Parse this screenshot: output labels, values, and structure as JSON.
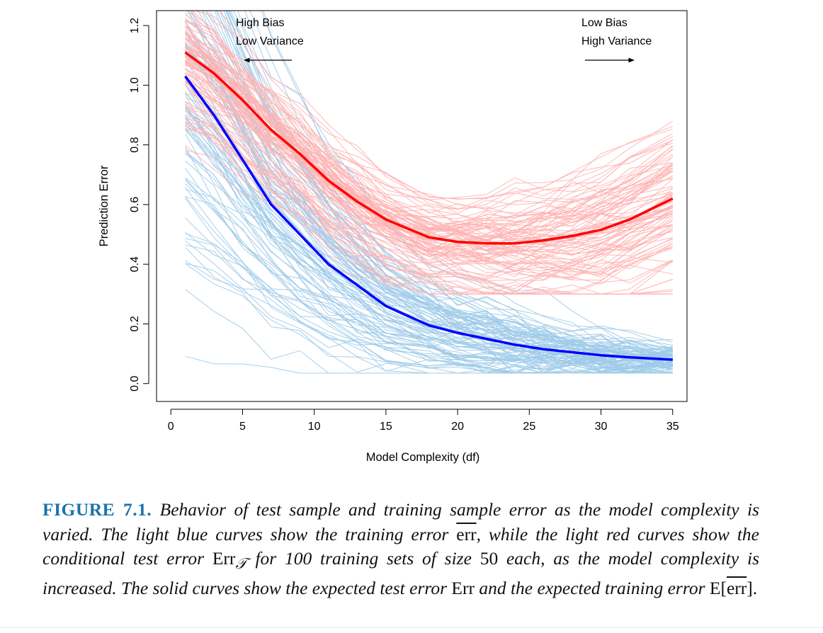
{
  "chart_data": {
    "type": "line",
    "xlabel": "Model Complexity (df)",
    "ylabel": "Prediction Error",
    "xlim": [
      -1,
      36
    ],
    "ylim": [
      -0.06,
      1.25
    ],
    "xticks": [
      0,
      5,
      10,
      15,
      20,
      25,
      30,
      35
    ],
    "yticks": [
      0.0,
      0.2,
      0.4,
      0.6,
      0.8,
      1.0,
      1.2
    ],
    "xtick_labels": [
      "0",
      "5",
      "10",
      "15",
      "20",
      "25",
      "30",
      "35"
    ],
    "ytick_labels": [
      "0.0",
      "0.2",
      "0.4",
      "0.6",
      "0.8",
      "1.0",
      "1.2"
    ],
    "grid": false,
    "x": [
      1,
      3,
      5,
      7,
      9,
      11,
      13,
      15,
      18,
      20,
      22,
      24,
      26,
      28,
      30,
      32,
      35
    ],
    "series": [
      {
        "role": "expected-test-error",
        "color": "#ff0000",
        "values": [
          1.11,
          1.04,
          0.95,
          0.85,
          0.77,
          0.68,
          0.61,
          0.55,
          0.49,
          0.475,
          0.47,
          0.47,
          0.48,
          0.495,
          0.515,
          0.55,
          0.62
        ]
      },
      {
        "role": "expected-training-error",
        "color": "#0000ff",
        "values": [
          1.03,
          0.9,
          0.75,
          0.6,
          0.5,
          0.4,
          0.33,
          0.26,
          0.195,
          0.17,
          0.15,
          0.13,
          0.115,
          0.105,
          0.095,
          0.088,
          0.08
        ]
      }
    ],
    "band_count": 100,
    "band_colors": {
      "test": "#ffb2b2",
      "train": "#9fcbe9"
    },
    "annotations": [
      {
        "lines": [
          "High Bias",
          "Low Variance"
        ],
        "arrow": "left"
      },
      {
        "lines": [
          "Low Bias",
          "High Variance"
        ],
        "arrow": "right"
      }
    ]
  },
  "caption": {
    "label": "FIGURE 7.1.",
    "part1": " Behavior of test sample and training sample error as the model complexity is varied. The light blue curves show the training error ",
    "err": "err",
    "part2": ", while the light red curves show the conditional test error ",
    "err_t": "Err",
    "sub_t": "𝒯",
    "part3": " for 100 training sets of size ",
    "n": "50",
    "part4": " each, as the model complexity is increased. The solid curves show the expected test error ",
    "err_plain": "Err",
    "part5": " and the expected training error ",
    "e_open": "E[",
    "e_err": "err",
    "e_close": "].",
    "tail": ""
  }
}
